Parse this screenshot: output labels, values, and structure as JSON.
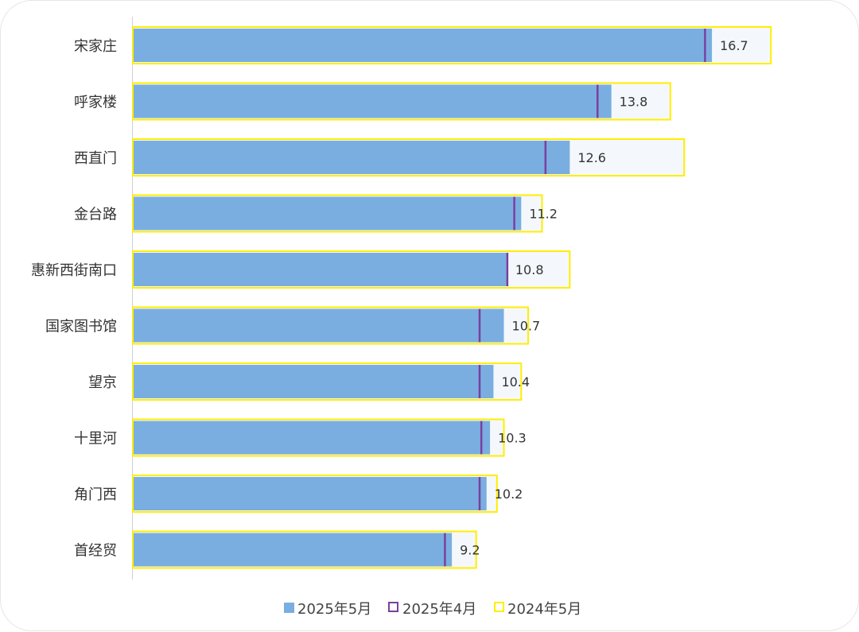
{
  "chart_data": {
    "type": "bar",
    "orientation": "horizontal",
    "categories": [
      "宋家庄",
      "呼家楼",
      "西直门",
      "金台路",
      "惠新西街南口",
      "国家图书馆",
      "望京",
      "十里河",
      "角门西",
      "首经贸"
    ],
    "series": [
      {
        "name": "2025年5月",
        "style": "filled-bar",
        "color": "#7aaee0",
        "values": [
          16.7,
          13.8,
          12.6,
          11.2,
          10.8,
          10.7,
          10.4,
          10.3,
          10.2,
          9.2
        ]
      },
      {
        "name": "2025年4月",
        "style": "marker-line",
        "color": "#7b3fa0",
        "values": [
          16.5,
          13.4,
          11.9,
          11.0,
          10.8,
          10.0,
          10.0,
          10.05,
          10.0,
          9.0
        ]
      },
      {
        "name": "2024年5月",
        "style": "outline-bar",
        "color": "#ffee00",
        "values": [
          18.4,
          15.5,
          15.9,
          11.8,
          12.6,
          11.4,
          11.2,
          10.7,
          10.5,
          9.9
        ]
      }
    ],
    "data_labels": [
      "16.7",
      "13.8",
      "12.6",
      "11.2",
      "10.8",
      "10.7",
      "10.4",
      "10.3",
      "10.2",
      "9.2"
    ],
    "xlim": [
      0,
      20
    ],
    "grid": false,
    "legend": "bottom"
  }
}
